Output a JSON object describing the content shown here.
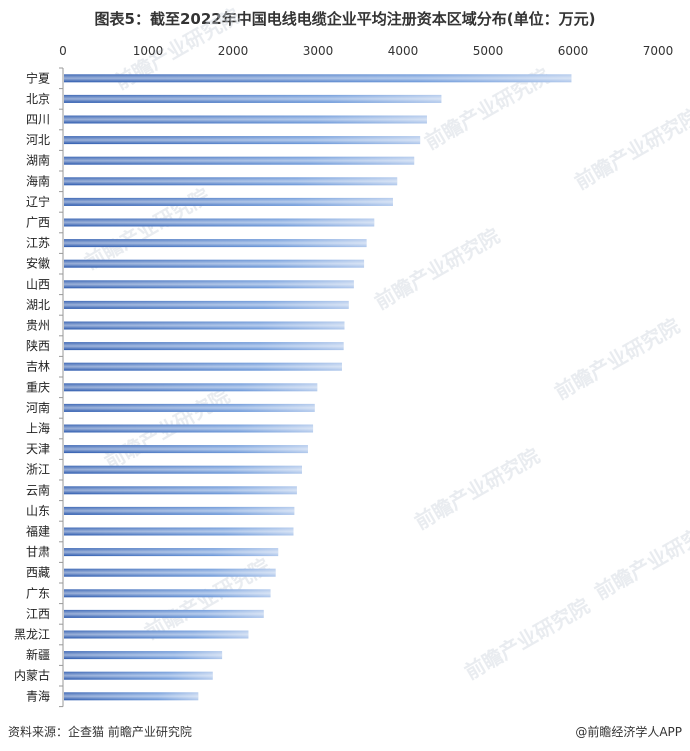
{
  "chart_data": {
    "type": "bar",
    "orientation": "horizontal",
    "title": "图表5：截至2022年中国电线电缆企业平均注册资本区域分布(单位：万元)",
    "xlim": [
      0,
      7000
    ],
    "xticks": [
      0,
      1000,
      2000,
      3000,
      4000,
      5000,
      6000,
      7000
    ],
    "grid": false,
    "categories": [
      "宁夏",
      "北京",
      "四川",
      "河北",
      "湖南",
      "海南",
      "辽宁",
      "广西",
      "江苏",
      "安徽",
      "山西",
      "湖北",
      "贵州",
      "陕西",
      "吉林",
      "重庆",
      "河南",
      "上海",
      "天津",
      "浙江",
      "云南",
      "山东",
      "福建",
      "甘肃",
      "西藏",
      "广东",
      "江西",
      "黑龙江",
      "新疆",
      "内蒙古",
      "青海"
    ],
    "values": [
      5970,
      4440,
      4270,
      4190,
      4120,
      3920,
      3870,
      3650,
      3560,
      3530,
      3410,
      3350,
      3300,
      3290,
      3270,
      2980,
      2950,
      2930,
      2870,
      2800,
      2740,
      2710,
      2700,
      2520,
      2490,
      2430,
      2350,
      2170,
      1860,
      1750,
      1580
    ],
    "bar_color": "#2f62b8"
  },
  "footer": {
    "source": "资料来源：企查猫 前瞻产业研究院",
    "credit": "@前瞻经济学人APP"
  },
  "watermark": "前瞻产业研究院"
}
